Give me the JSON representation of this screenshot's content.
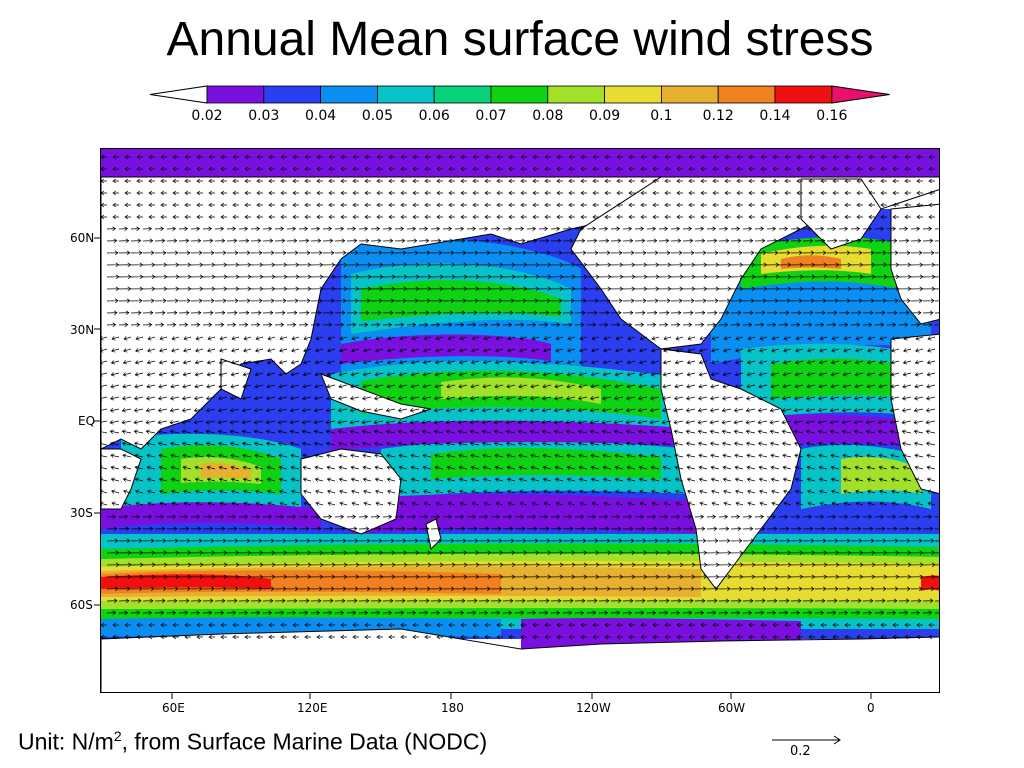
{
  "title": "Annual Mean surface wind stress",
  "colorbar": {
    "labels": [
      "0.02",
      "0.03",
      "0.04",
      "0.05",
      "0.06",
      "0.07",
      "0.08",
      "0.09",
      "0.1",
      "0.12",
      "0.14",
      "0.16"
    ],
    "colors": [
      "#ffffff",
      "#7a10e0",
      "#2c3ff0",
      "#0a8ef2",
      "#06c3c8",
      "#06d27a",
      "#0ed212",
      "#a2e02a",
      "#e6dc32",
      "#e8b030",
      "#f08020",
      "#f01010",
      "#e8106a"
    ]
  },
  "map": {
    "land_color": "#ffffff",
    "ocean_palette": {
      "low": "#7a10e0",
      "mid_low": "#2c3ff0",
      "mid": "#0a8ef2",
      "teal": "#06c3c8",
      "green": "#0ed212",
      "yellow_green": "#a2e02a",
      "yellow": "#e6dc32",
      "orange": "#f08020",
      "red": "#f01010"
    }
  },
  "axes": {
    "lat_labels": [
      "60N",
      "30N",
      "EQ",
      "30S",
      "60S"
    ],
    "lon_labels": [
      "60E",
      "120E",
      "180",
      "120W",
      "60W",
      "0"
    ]
  },
  "unit_note": {
    "prefix": "Unit: N/m",
    "superscript": "2",
    "suffix": ", from Surface Marine Data (NODC)"
  },
  "reference_vector": {
    "label": "0.2"
  }
}
